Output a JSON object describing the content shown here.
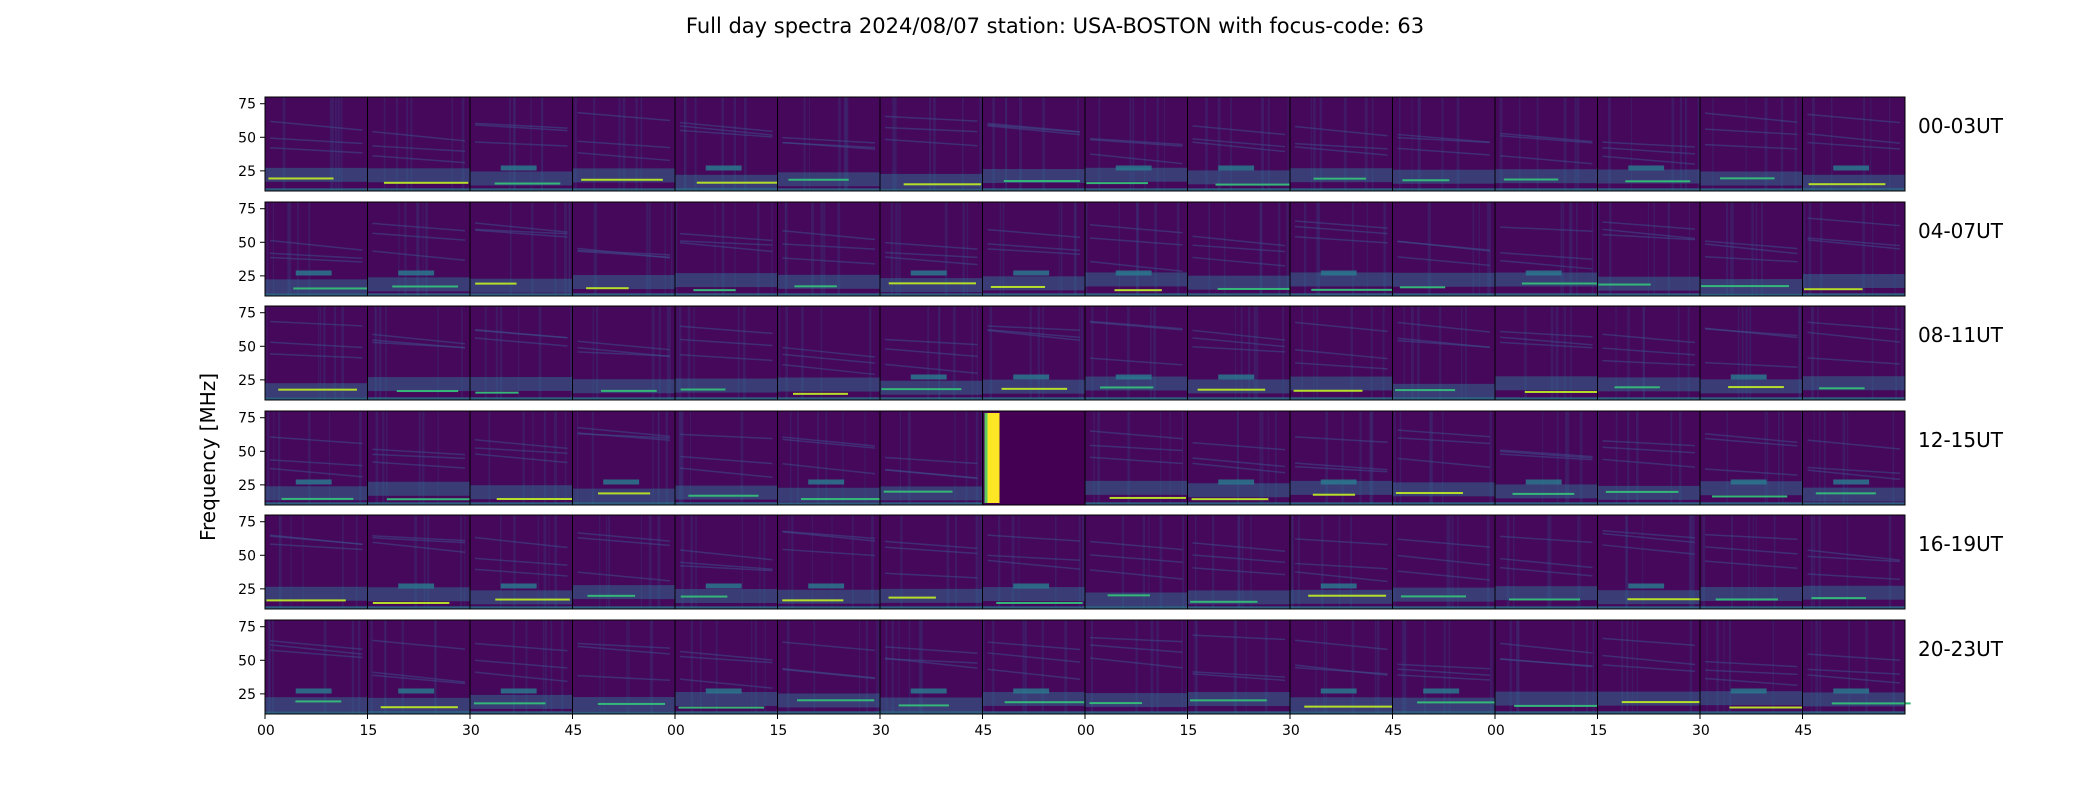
{
  "chart_data": {
    "type": "heatmap",
    "title": "Full day spectra 2024/08/07 station: USA-BOSTON with focus-code: 63",
    "ylabel": "Frequency [MHz]",
    "xlabel": "",
    "ylim": [
      10,
      80
    ],
    "y_ticks": [
      25,
      50,
      75
    ],
    "x_tick_labels": [
      "00",
      "15",
      "30",
      "45",
      "00",
      "15",
      "30",
      "45",
      "00",
      "15",
      "30",
      "45",
      "00",
      "15",
      "30",
      "45"
    ],
    "colormap": "viridis",
    "colors": {
      "background": "#45085a",
      "low": "#440154",
      "mid": "#21908d",
      "high": "#fde725"
    },
    "rows": [
      {
        "label": "00-03UT",
        "panels": 16
      },
      {
        "label": "04-07UT",
        "panels": 16
      },
      {
        "label": "08-11UT",
        "panels": 16
      },
      {
        "label": "12-15UT",
        "panels": 16
      },
      {
        "label": "16-19UT",
        "panels": 16
      },
      {
        "label": "20-23UT",
        "panels": 16
      }
    ]
  }
}
